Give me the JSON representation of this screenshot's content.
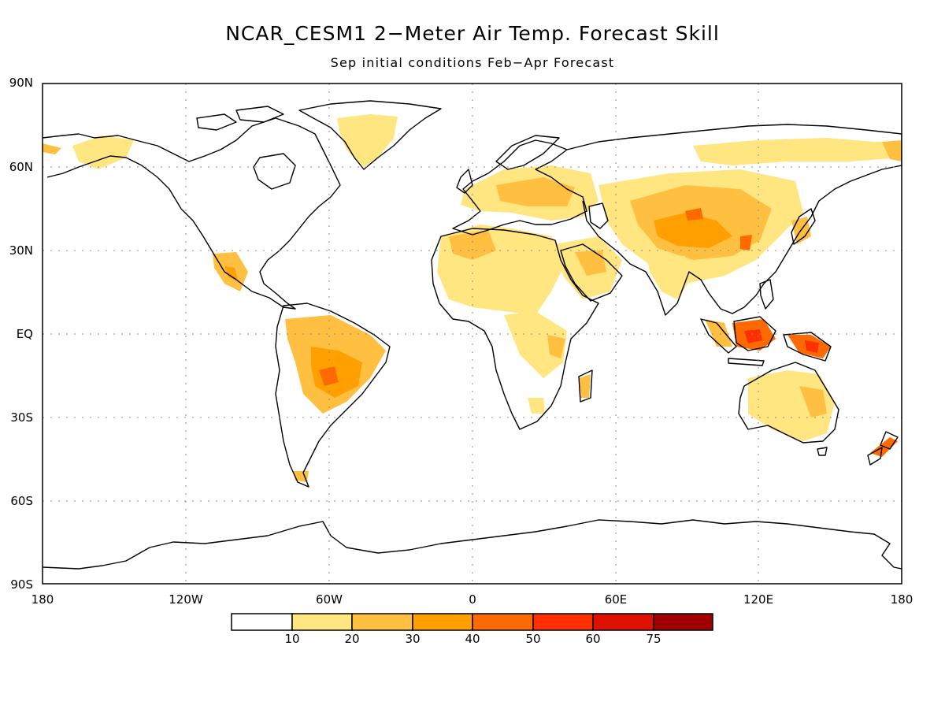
{
  "title": "NCAR_CESM1 2−Meter Air Temp. Forecast Skill",
  "subtitle": "Sep initial conditions  Feb−Apr Forecast",
  "map": {
    "projection": "equirectangular",
    "lon_range": [
      -180,
      180
    ],
    "lat_range": [
      -90,
      90
    ],
    "gridlines": "dotted",
    "y_tick_labels": [
      "90N",
      "60N",
      "30N",
      "EQ",
      "30S",
      "60S",
      "90S"
    ],
    "x_tick_labels": [
      "180",
      "120W",
      "60W",
      "0",
      "60E",
      "120E",
      "180"
    ]
  },
  "colorbar": {
    "labels": [
      "10",
      "20",
      "30",
      "40",
      "50",
      "60",
      "75"
    ],
    "colors": [
      "#ffffff",
      "#ffe680",
      "#ffbf40",
      "#ffa000",
      "#ff6a00",
      "#ff3000",
      "#dd1200",
      "#a00000"
    ]
  },
  "skill_regions": [
    {
      "name": "Sahara",
      "level": 2
    },
    {
      "name": "Central Asia",
      "level": 3
    },
    {
      "name": "Brazil",
      "level": 3
    },
    {
      "name": "Borneo",
      "level": 5
    },
    {
      "name": "New Guinea",
      "level": 5
    },
    {
      "name": "Europe",
      "level": 2
    },
    {
      "name": "Australia",
      "level": 2
    },
    {
      "name": "Arabia",
      "level": 2
    },
    {
      "name": "Siberia",
      "level": 1
    },
    {
      "name": "Greenland",
      "level": 1
    }
  ]
}
